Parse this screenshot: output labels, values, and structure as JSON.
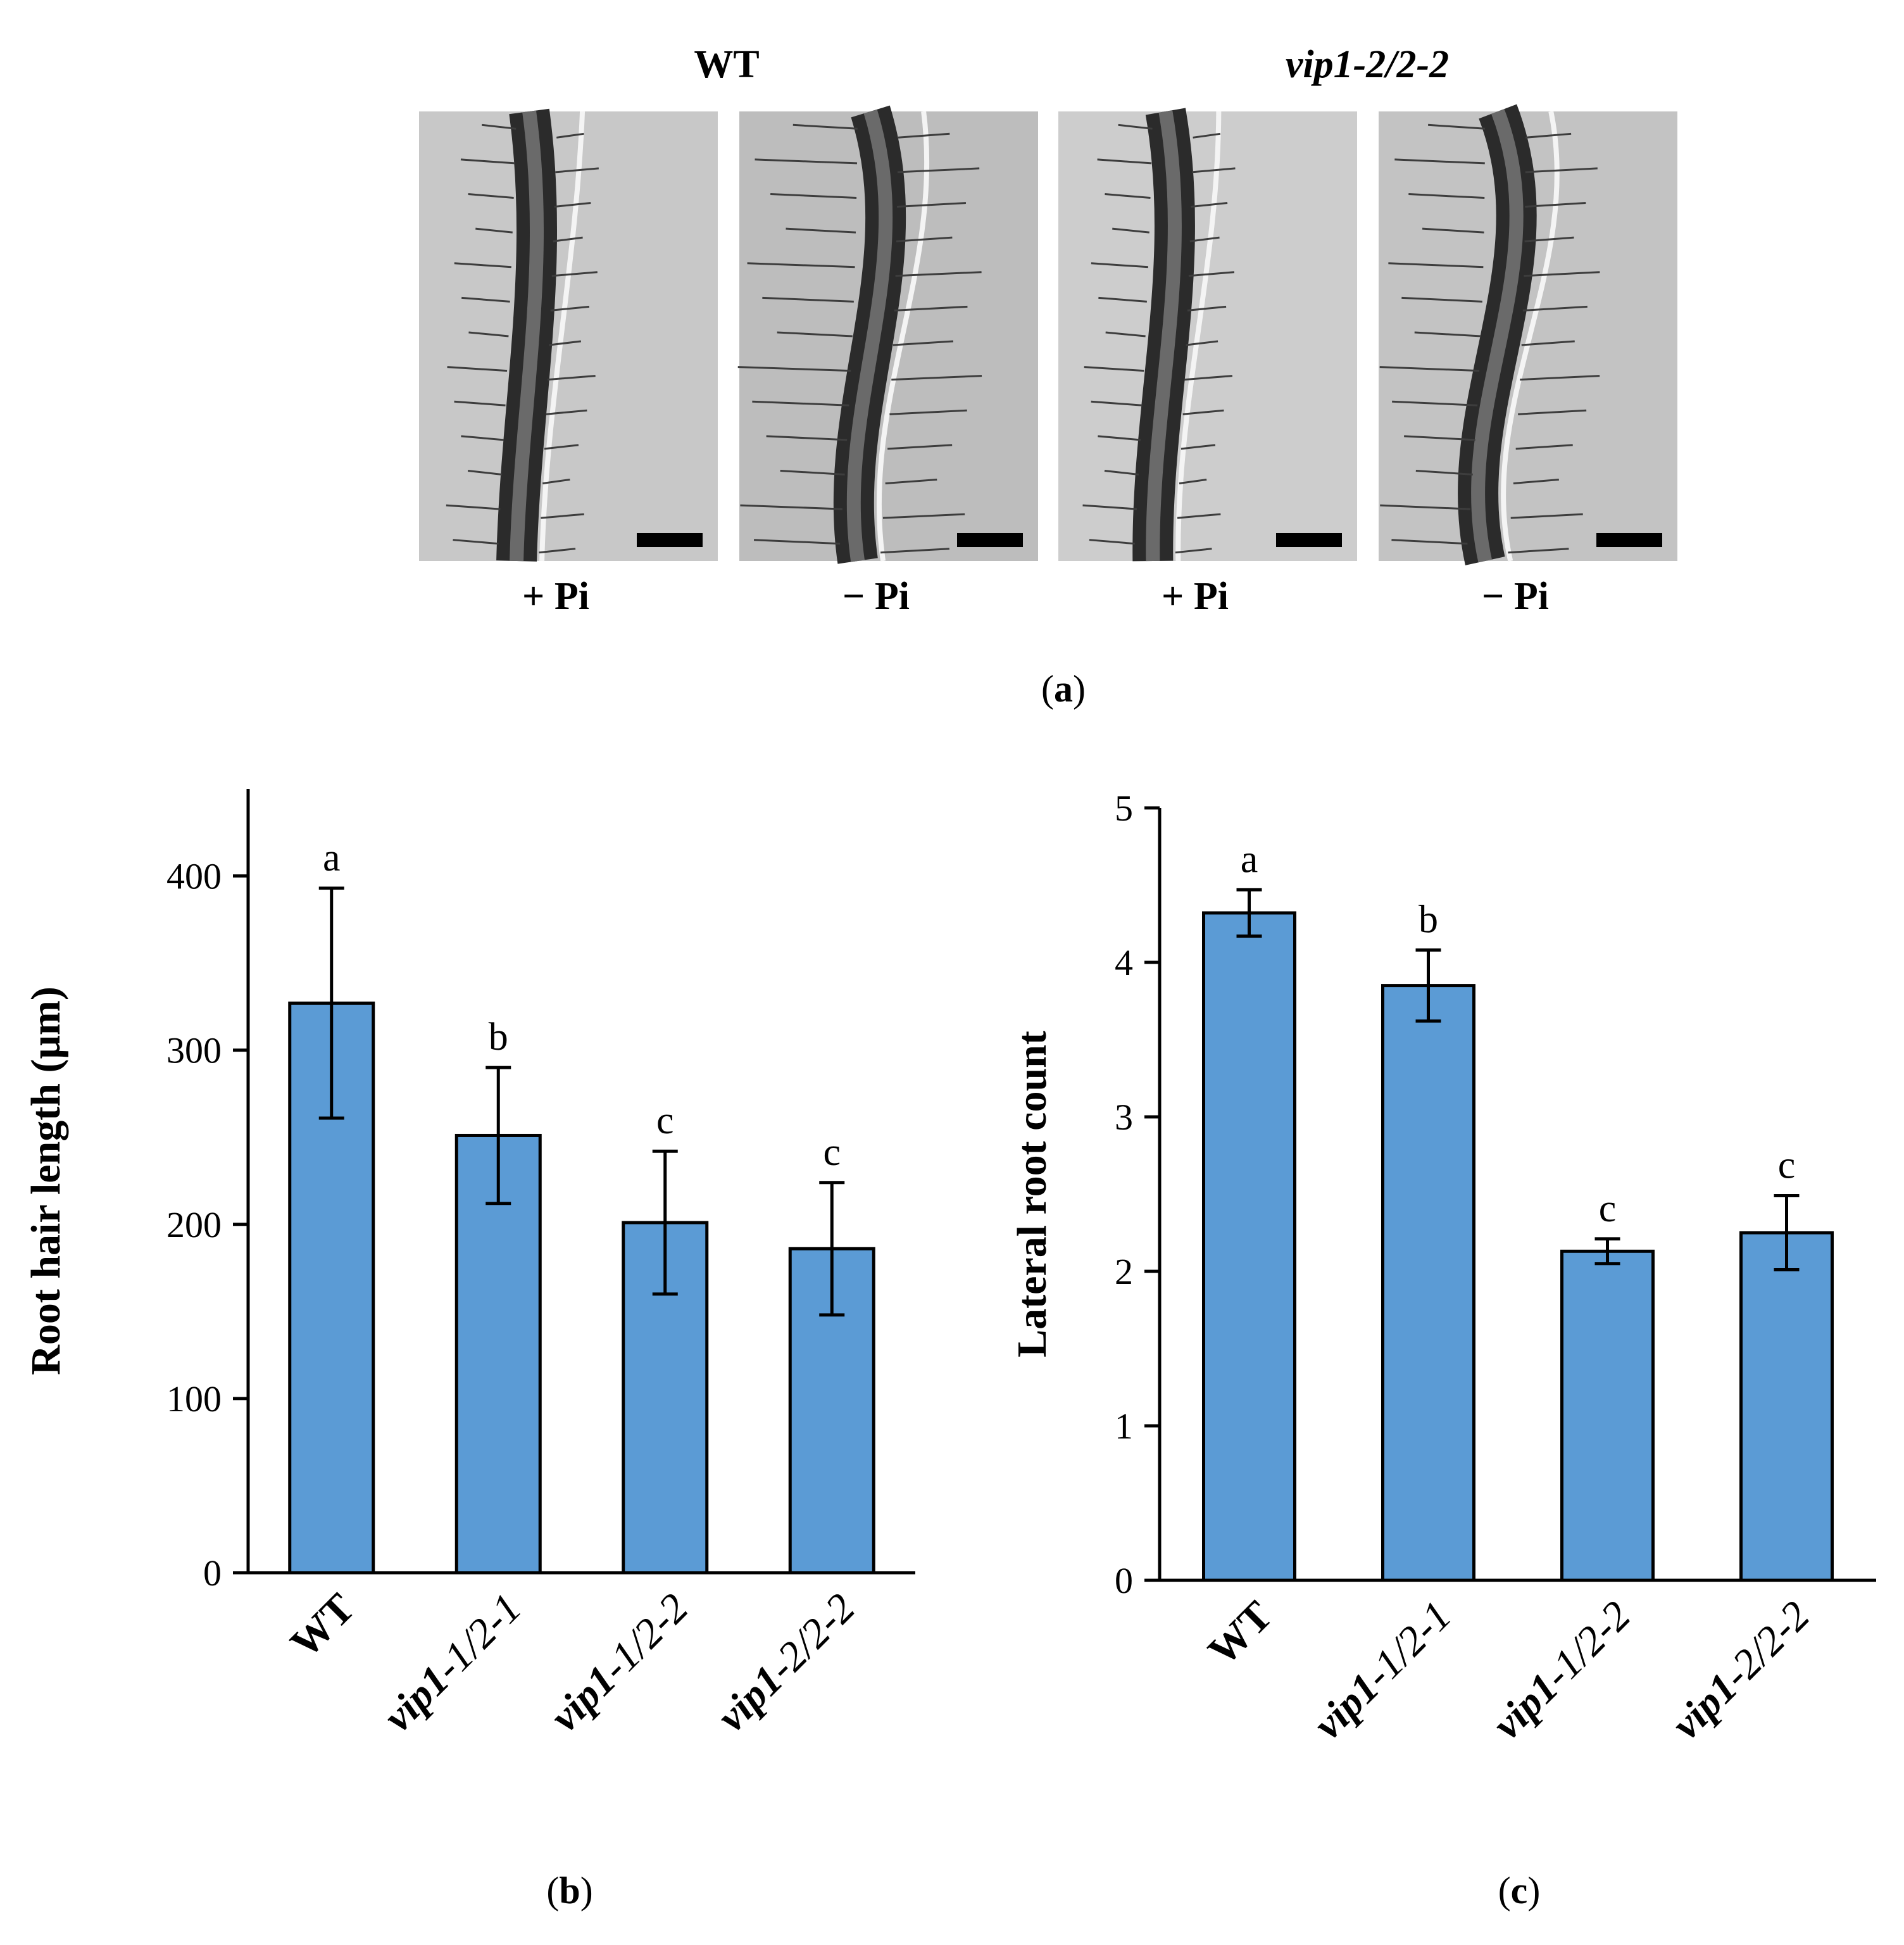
{
  "panel_a": {
    "column_headers": [
      {
        "text": "WT",
        "style": "bold"
      },
      {
        "text": "vip1",
        "text_tail": "-2/2-2",
        "style": "bold-italic"
      }
    ],
    "images": [
      {
        "condition": "+ Pi",
        "background": "#c8c8c8"
      },
      {
        "condition": "− Pi",
        "background": "#bdbdbd"
      },
      {
        "condition": "+ Pi",
        "background": "#cdcdcd"
      },
      {
        "condition": "− Pi",
        "background": "#c3c3c3"
      }
    ],
    "caption_letter": "a"
  },
  "chart_data": [
    {
      "type": "bar",
      "panel": "b",
      "caption_letter": "b",
      "categories": [
        "WT",
        "vip1-1/2-1",
        "vip1-1/2-2",
        "vip1-2/2-2"
      ],
      "values": [
        327,
        251,
        201,
        186
      ],
      "error": [
        66,
        39,
        41,
        38
      ],
      "significance": [
        "a",
        "b",
        "c",
        "c"
      ],
      "ylabel": "Root hair length (μm)",
      "ylim": [
        0,
        450
      ],
      "yticks": [
        0,
        100,
        200,
        300,
        400
      ],
      "bar_color": "#5b9bd5",
      "grid": false
    },
    {
      "type": "bar",
      "panel": "c",
      "caption_letter": "c",
      "categories": [
        "WT",
        "vip1-1/2-1",
        "vip1-1/2-2",
        "vip1-2/2-2"
      ],
      "values": [
        4.32,
        3.85,
        2.13,
        2.25
      ],
      "error": [
        0.15,
        0.23,
        0.08,
        0.24
      ],
      "significance": [
        "a",
        "b",
        "c",
        "c"
      ],
      "ylabel": "Lateral root count",
      "ylim": [
        0,
        5
      ],
      "yticks": [
        0,
        1,
        2,
        3,
        4,
        5
      ],
      "bar_color": "#5b9bd5",
      "grid": false
    }
  ]
}
